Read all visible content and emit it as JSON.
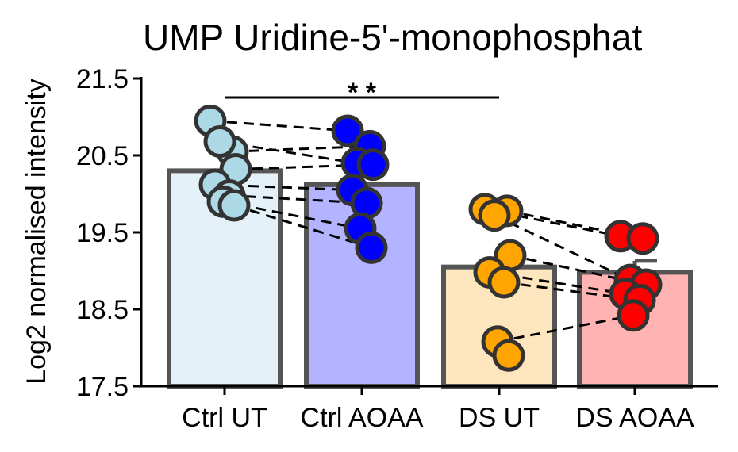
{
  "chart_data": {
    "type": "bar",
    "title": "UMP Uridine-5'-monophosphat",
    "ylabel": "Log2 normalised intensity",
    "xlabel": "",
    "ylim": [
      17.5,
      21.5
    ],
    "yticks": [
      "17.5",
      "18.5",
      "19.5",
      "20.5",
      "21.5"
    ],
    "grid": false,
    "categories": [
      "Ctrl UT",
      "Ctrl AOAA",
      "DS UT",
      "DS AOAA"
    ],
    "values": [
      20.3,
      20.12,
      19.05,
      18.98
    ],
    "errors": [
      0.12,
      0.13,
      0.26,
      0.15
    ],
    "bar_fill_colors": [
      "#e5f1f8",
      "#b3b3ff",
      "#fde5bd",
      "#ffb3b3"
    ],
    "point_colors": [
      "#add8e6",
      "#0000ff",
      "#ffa500",
      "#ff0000"
    ],
    "points": [
      [
        20.95,
        20.55,
        20.68,
        20.32,
        20.12,
        19.98,
        19.9,
        19.85
      ],
      [
        20.82,
        20.62,
        20.4,
        20.38,
        20.05,
        19.88,
        19.55,
        19.3
      ],
      [
        19.8,
        19.78,
        19.72,
        19.2,
        18.98,
        18.85,
        18.08,
        17.9
      ],
      [
        19.45,
        19.42,
        18.88,
        18.82,
        18.7,
        18.62,
        18.42
      ]
    ],
    "significance": {
      "groups": [
        "Ctrl UT",
        "DS UT"
      ],
      "label": "* *"
    }
  }
}
